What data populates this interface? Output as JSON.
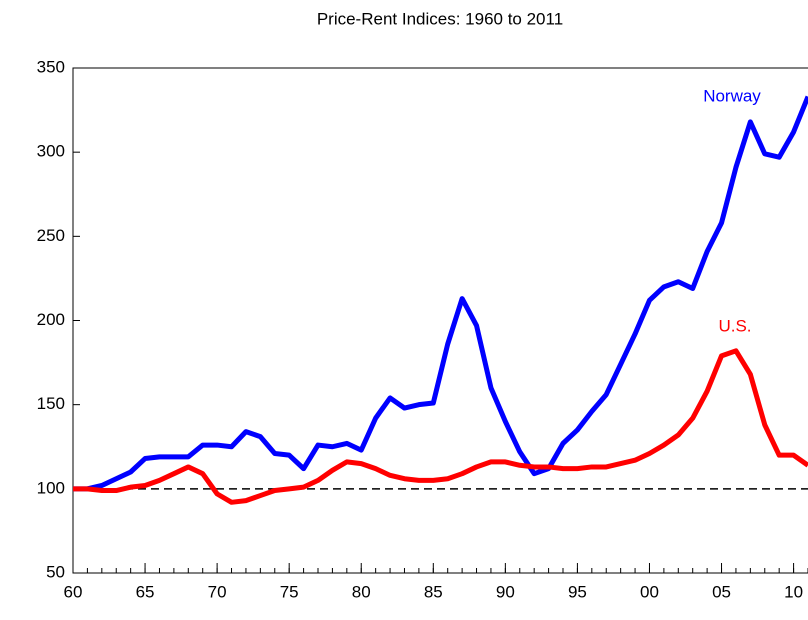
{
  "chart_data": {
    "type": "line",
    "title": "Price-Rent Indices: 1960 to 2011",
    "x": [
      1960,
      1961,
      1962,
      1963,
      1964,
      1965,
      1966,
      1967,
      1968,
      1969,
      1970,
      1971,
      1972,
      1973,
      1974,
      1975,
      1976,
      1977,
      1978,
      1979,
      1980,
      1981,
      1982,
      1983,
      1984,
      1985,
      1986,
      1987,
      1988,
      1989,
      1990,
      1991,
      1992,
      1993,
      1994,
      1995,
      1996,
      1997,
      1998,
      1999,
      2000,
      2001,
      2002,
      2003,
      2004,
      2005,
      2006,
      2007,
      2008,
      2009,
      2010,
      2011
    ],
    "series": [
      {
        "name": "Norway",
        "color": "#0000ff",
        "values": [
          100,
          100,
          102,
          106,
          110,
          118,
          119,
          119,
          119,
          126,
          126,
          125,
          134,
          131,
          121,
          120,
          112,
          126,
          125,
          127,
          123,
          142,
          154,
          148,
          150,
          151,
          186,
          213,
          197,
          160,
          140,
          122,
          109,
          112,
          127,
          135,
          146,
          156,
          174,
          192,
          212,
          220,
          223,
          219,
          241,
          258,
          291,
          318,
          299,
          297,
          312,
          333
        ]
      },
      {
        "name": "U.S.",
        "color": "#ff0000",
        "values": [
          100,
          100,
          99,
          99,
          101,
          102,
          105,
          109,
          113,
          109,
          97,
          92,
          93,
          96,
          99,
          100,
          101,
          105,
          111,
          116,
          115,
          112,
          108,
          106,
          105,
          105,
          106,
          109,
          113,
          116,
          116,
          114,
          113,
          113,
          112,
          112,
          113,
          113,
          115,
          117,
          121,
          126,
          132,
          142,
          158,
          179,
          182,
          168,
          138,
          120,
          120,
          114
        ]
      }
    ],
    "xlim": [
      1960,
      2011
    ],
    "xticks": [
      {
        "value": 1960,
        "label": "60"
      },
      {
        "value": 1965,
        "label": "65"
      },
      {
        "value": 1970,
        "label": "70"
      },
      {
        "value": 1975,
        "label": "75"
      },
      {
        "value": 1980,
        "label": "80"
      },
      {
        "value": 1985,
        "label": "85"
      },
      {
        "value": 1990,
        "label": "90"
      },
      {
        "value": 1995,
        "label": "95"
      },
      {
        "value": 2000,
        "label": "00"
      },
      {
        "value": 2005,
        "label": "05"
      },
      {
        "value": 2010,
        "label": "10"
      }
    ],
    "x_minor_step": 1,
    "ylim": [
      50,
      350
    ],
    "yticks": [
      50,
      100,
      150,
      200,
      250,
      300,
      350
    ],
    "reference_line": 100,
    "grid": false
  }
}
